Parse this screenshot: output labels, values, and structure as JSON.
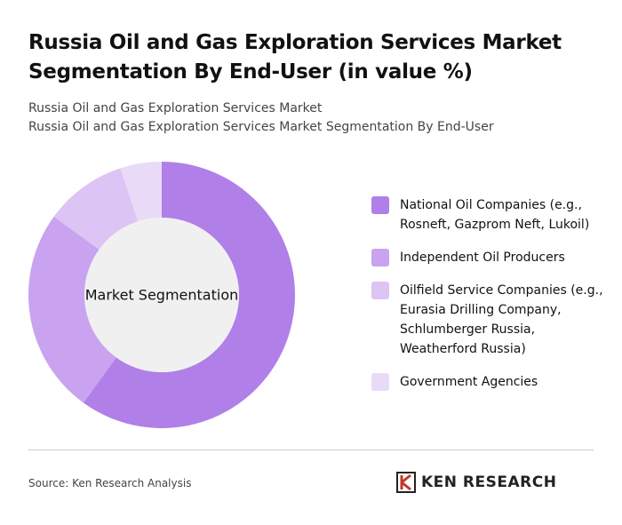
{
  "chart_data": {
    "type": "donut",
    "title": "Russia Oil and Gas Exploration Services Market Segmentation By End-User (in value %)",
    "subtitle": [
      "Russia Oil and Gas Exploration Services Market",
      "Russia Oil and Gas Exploration Services Market Segmentation By End-User"
    ],
    "center_label": "Market Segmentation",
    "categories": [
      "National Oil Companies (e.g., Rosneft, Gazprom Neft, Lukoil)",
      "Independent Oil Producers",
      "Oilfield Service Companies (e.g., Eurasia Drilling Company, Schlumberger Russia, Weatherford Russia)",
      "Government Agencies"
    ],
    "values": [
      60,
      25,
      10,
      5
    ],
    "colors": [
      "#b07fe8",
      "#c9a3ef",
      "#dcc4f5",
      "#e9dbf8"
    ],
    "source": "Source: Ken Research Analysis",
    "logo": "KEN RESEARCH"
  }
}
